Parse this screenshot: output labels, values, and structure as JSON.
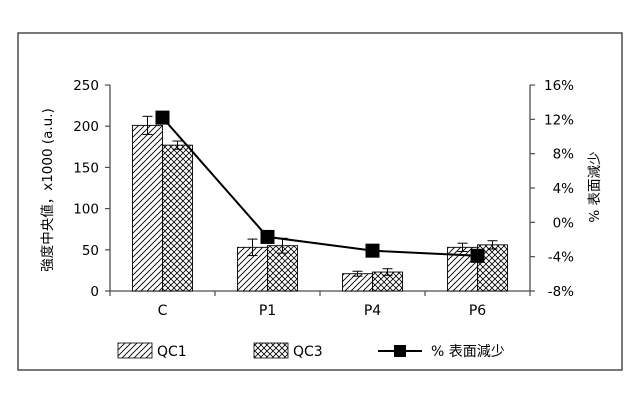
{
  "chart_data": {
    "type": "bar",
    "categories": [
      "C",
      "P1",
      "P4",
      "P6"
    ],
    "series": [
      {
        "name": "QC1",
        "type": "bar",
        "axis": "left",
        "pattern": "diagonal",
        "values": [
          201,
          53,
          21,
          53
        ],
        "errors": [
          11,
          10,
          3,
          5
        ]
      },
      {
        "name": "QC3",
        "type": "bar",
        "axis": "left",
        "pattern": "crosshatch",
        "values": [
          177,
          55,
          23,
          56
        ],
        "errors": [
          5,
          9,
          4,
          5
        ]
      },
      {
        "name": "% 表面減少",
        "type": "line",
        "axis": "right",
        "marker": "square",
        "values": [
          12.2,
          -1.7,
          -3.3,
          -3.9
        ]
      }
    ],
    "y_left": {
      "label": "強度中央値，x1000 (a.u.)",
      "lim": [
        0,
        250
      ],
      "ticks": [
        "0",
        "50",
        "100",
        "150",
        "200",
        "250"
      ]
    },
    "y_right": {
      "label": "% 表面減少",
      "lim": [
        -8,
        16
      ],
      "ticks": [
        "-8%",
        "-4%",
        "0%",
        "4%",
        "8%",
        "12%",
        "16%"
      ]
    },
    "grid": false,
    "legend_position": "bottom",
    "colors": {
      "bar_fill": "#ffffff",
      "line": "#000000",
      "frame": "#4d4d4d"
    }
  }
}
